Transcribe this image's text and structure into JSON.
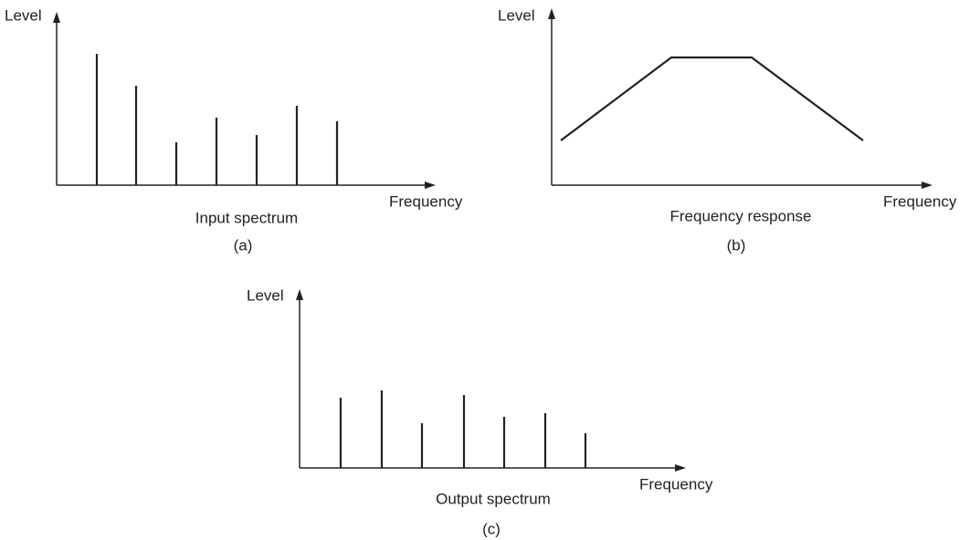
{
  "panels": [
    {
      "y_axis_label": "Level",
      "x_axis_label": "Frequency",
      "title": "Input spectrum",
      "tag": "(a)"
    },
    {
      "y_axis_label": "Level",
      "x_axis_label": "Frequency",
      "title": "Frequency response",
      "tag": "(b)"
    },
    {
      "y_axis_label": "Level",
      "x_axis_label": "Frequency",
      "title": "Output spectrum",
      "tag": "(c)"
    }
  ]
}
